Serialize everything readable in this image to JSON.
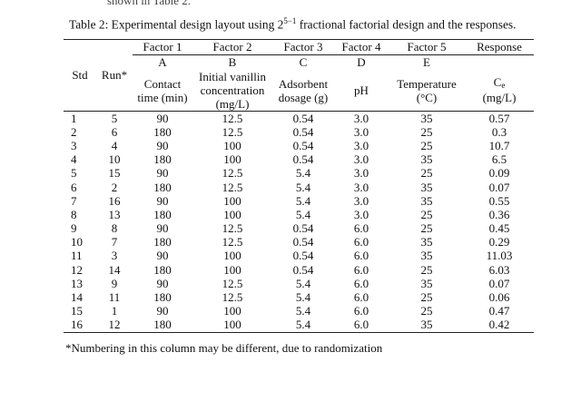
{
  "cut_text": "shown in Table 2.",
  "caption": {
    "prefix": "Table 2: Experimental design layout using 2",
    "exponent": "5−1",
    "suffix": " fractional factorial design and the responses."
  },
  "headers": {
    "std": "Std",
    "run": "Run*",
    "factors": [
      {
        "name": "Factor 1",
        "code": "A",
        "desc": "Contact time (min)"
      },
      {
        "name": "Factor 2",
        "code": "B",
        "desc": "Initial vanillin concentration (mg/L)"
      },
      {
        "name": "Factor 3",
        "code": "C",
        "desc": "Adsorbent dosage (g)"
      },
      {
        "name": "Factor 4",
        "code": "D",
        "desc": "pH"
      },
      {
        "name": "Factor 5",
        "code": "E",
        "desc": "Temperature (°C)"
      }
    ],
    "response": {
      "name": "Response",
      "symbol": "C",
      "subscript": "e",
      "unit": "(mg/L)"
    }
  },
  "rows": [
    [
      "1",
      "5",
      "90",
      "12.5",
      "0.54",
      "3.0",
      "35",
      "0.57"
    ],
    [
      "2",
      "6",
      "180",
      "12.5",
      "0.54",
      "3.0",
      "25",
      "0.3"
    ],
    [
      "3",
      "4",
      "90",
      "100",
      "0.54",
      "3.0",
      "25",
      "10.7"
    ],
    [
      "4",
      "10",
      "180",
      "100",
      "0.54",
      "3.0",
      "35",
      "6.5"
    ],
    [
      "5",
      "15",
      "90",
      "12.5",
      "5.4",
      "3.0",
      "25",
      "0.09"
    ],
    [
      "6",
      "2",
      "180",
      "12.5",
      "5.4",
      "3.0",
      "35",
      "0.07"
    ],
    [
      "7",
      "16",
      "90",
      "100",
      "5.4",
      "3.0",
      "35",
      "0.55"
    ],
    [
      "8",
      "13",
      "180",
      "100",
      "5.4",
      "3.0",
      "25",
      "0.36"
    ],
    [
      "9",
      "8",
      "90",
      "12.5",
      "0.54",
      "6.0",
      "25",
      "0.45"
    ],
    [
      "10",
      "7",
      "180",
      "12.5",
      "0.54",
      "6.0",
      "35",
      "0.29"
    ],
    [
      "11",
      "3",
      "90",
      "100",
      "0.54",
      "6.0",
      "35",
      "11.03"
    ],
    [
      "12",
      "14",
      "180",
      "100",
      "0.54",
      "6.0",
      "25",
      "6.03"
    ],
    [
      "13",
      "9",
      "90",
      "12.5",
      "5.4",
      "6.0",
      "35",
      "0.07"
    ],
    [
      "14",
      "11",
      "180",
      "12.5",
      "5.4",
      "6.0",
      "25",
      "0.06"
    ],
    [
      "15",
      "1",
      "90",
      "100",
      "5.4",
      "6.0",
      "25",
      "0.47"
    ],
    [
      "16",
      "12",
      "180",
      "100",
      "5.4",
      "6.0",
      "35",
      "0.42"
    ]
  ],
  "footnote": "*Numbering in this column may be different, due to randomization"
}
